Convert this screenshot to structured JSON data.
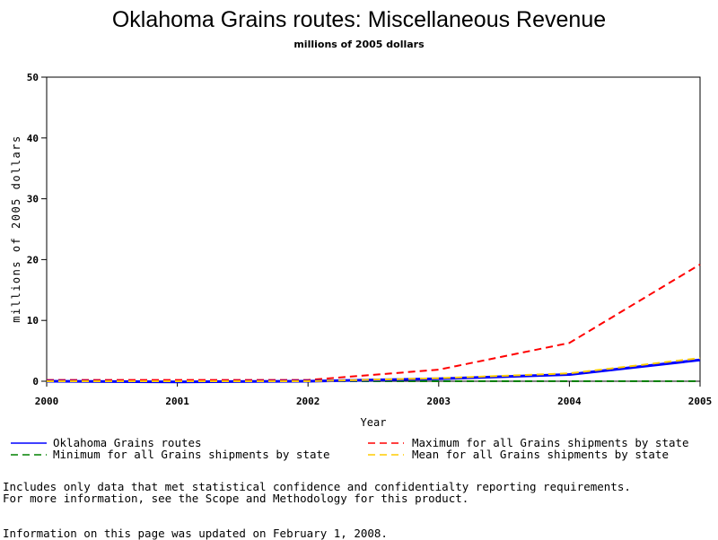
{
  "chart_data": {
    "type": "line",
    "title": "Oklahoma Grains routes: Miscellaneous Revenue",
    "subtitle": "millions of 2005 dollars",
    "xlabel": "Year",
    "ylabel": "millions of 2005 dollars",
    "xlim": [
      2000,
      2005
    ],
    "ylim": [
      0,
      50
    ],
    "x_ticks": [
      "2000",
      "2001",
      "2002",
      "2003",
      "2004",
      "2005"
    ],
    "y_ticks": [
      "0",
      "10",
      "20",
      "30",
      "40",
      "50"
    ],
    "grid": false,
    "legend_position": "bottom",
    "x": [
      2000,
      2001,
      2002,
      2003,
      2004,
      2005
    ],
    "series": [
      {
        "name": "Oklahoma Grains routes",
        "color": "#0000ff",
        "style": "solid",
        "values": [
          0,
          -0.1,
          0,
          0.4,
          1.1,
          3.5
        ]
      },
      {
        "name": "Maximum for all Grains shipments by state",
        "color": "#ff0000",
        "style": "dashed",
        "values": [
          0.2,
          0.2,
          0.2,
          1.9,
          6.3,
          19.2
        ]
      },
      {
        "name": "Minimum for all Grains shipments by state",
        "color": "#008000",
        "style": "dashed",
        "values": [
          0,
          0,
          0,
          0,
          0,
          0
        ]
      },
      {
        "name": "Mean for all Grains shipments by state",
        "color": "#ffcc00",
        "style": "dashed",
        "values": [
          0,
          0,
          0,
          0.5,
          1.3,
          3.8
        ]
      }
    ]
  },
  "notes": {
    "line1": "Includes only data that met statistical confidence and confidentialty reporting requirements.",
    "line2": "For more information, see the Scope and Methodology for this product.",
    "updated": "Information on this page was updated on February 1, 2008."
  }
}
